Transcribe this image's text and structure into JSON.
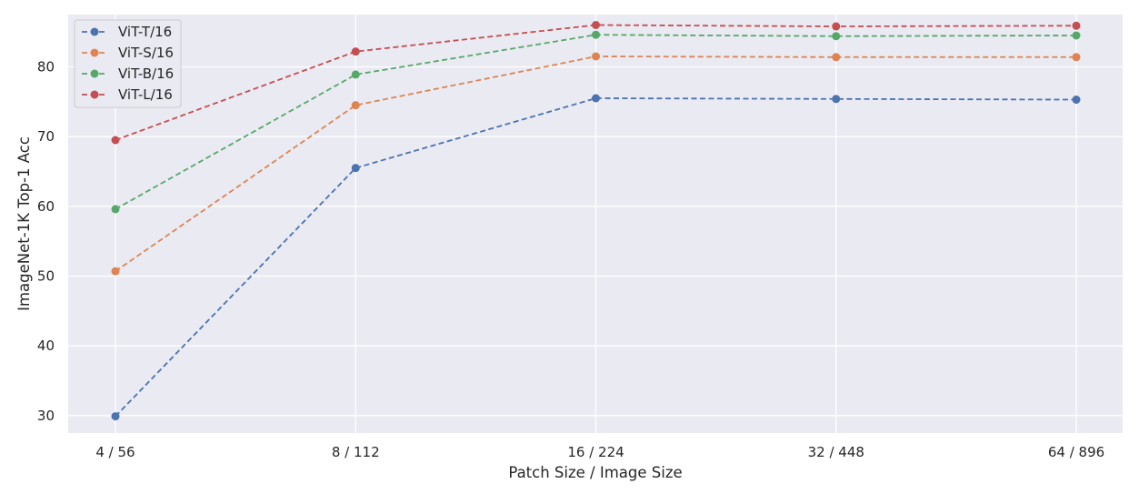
{
  "chart_data": {
    "type": "line",
    "title": "",
    "xlabel": "Patch Size / Image Size",
    "ylabel": "ImageNet-1K Top-1 Acc",
    "categories": [
      "4 / 56",
      "8 / 112",
      "16 / 224",
      "32 / 448",
      "64 / 896"
    ],
    "yticks": [
      30,
      40,
      50,
      60,
      70,
      80
    ],
    "ylim": [
      27.5,
      87.5
    ],
    "grid": true,
    "legend_position": "top-left",
    "line_style": "dashed",
    "marker": "circle",
    "background": "#eaeaf2",
    "series": [
      {
        "name": "ViT-T/16",
        "color": "#4c72b0",
        "values": [
          29.9,
          65.5,
          75.5,
          75.4,
          75.3
        ]
      },
      {
        "name": "ViT-S/16",
        "color": "#dd8452",
        "values": [
          50.7,
          74.5,
          81.5,
          81.4,
          81.4
        ]
      },
      {
        "name": "ViT-B/16",
        "color": "#55a868",
        "values": [
          59.6,
          78.9,
          84.6,
          84.4,
          84.5
        ]
      },
      {
        "name": "ViT-L/16",
        "color": "#c44e52",
        "values": [
          69.5,
          82.2,
          86.0,
          85.8,
          85.9
        ]
      }
    ]
  }
}
